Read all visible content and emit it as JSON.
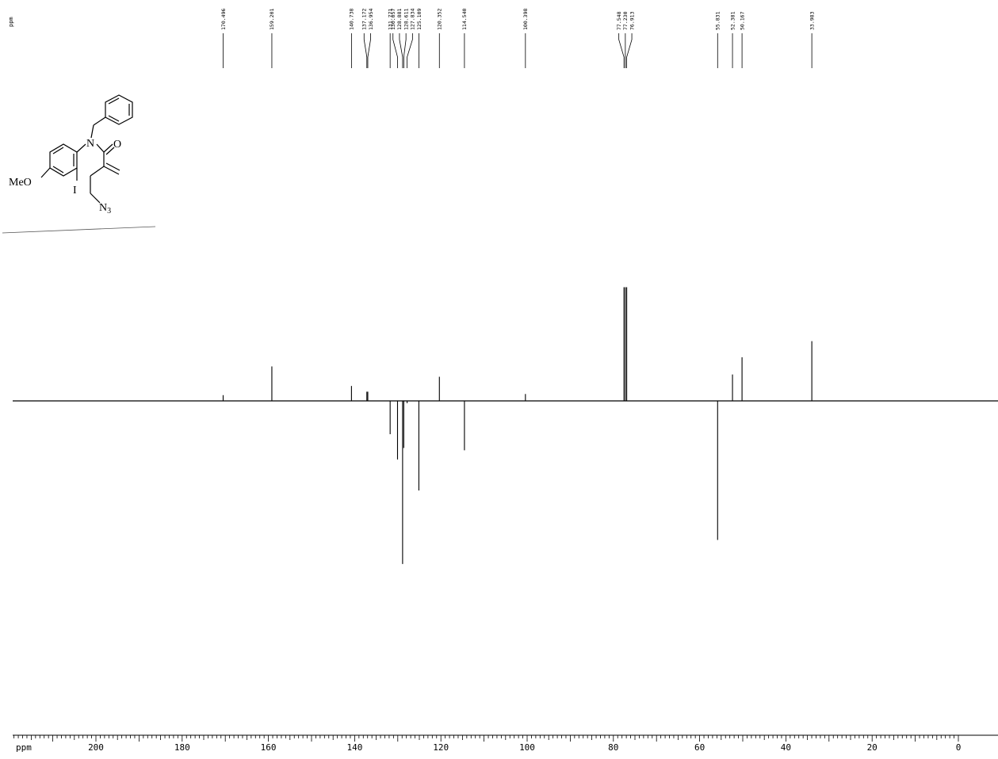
{
  "chart_data": {
    "type": "line",
    "title": "",
    "xlabel": "ppm",
    "ylabel": "",
    "corner_label": "ppm",
    "x_reversed": true,
    "xlim": [
      0,
      205
    ],
    "ticks": [
      200,
      180,
      160,
      140,
      120,
      100,
      80,
      60,
      40,
      20,
      0
    ],
    "tick_labels": [
      "200",
      "180",
      "160",
      "140",
      "120",
      "100",
      "80",
      "60",
      "40",
      "20",
      "0"
    ],
    "peak_labels": [
      "170.496",
      "159.201",
      "140.738",
      "137.172",
      "136.954",
      "131.771",
      "130.057",
      "128.881",
      "128.611",
      "127.834",
      "125.109",
      "120.352",
      "114.540",
      "100.398",
      "77.548",
      "77.230",
      "76.913",
      "55.831",
      "52.381",
      "50.167",
      "33.983"
    ],
    "peaks": [
      {
        "ppm": 170.496,
        "intensity": 0.05
      },
      {
        "ppm": 159.201,
        "intensity": 0.3
      },
      {
        "ppm": 140.738,
        "intensity": 0.13
      },
      {
        "ppm": 137.172,
        "intensity": 0.08
      },
      {
        "ppm": 136.954,
        "intensity": 0.08
      },
      {
        "ppm": 131.771,
        "intensity": -0.29
      },
      {
        "ppm": 130.057,
        "intensity": -0.51
      },
      {
        "ppm": 128.881,
        "intensity": -1.42
      },
      {
        "ppm": 128.611,
        "intensity": -0.41
      },
      {
        "ppm": 127.834,
        "intensity": -0.02
      },
      {
        "ppm": 125.109,
        "intensity": -0.78
      },
      {
        "ppm": 120.352,
        "intensity": 0.21
      },
      {
        "ppm": 114.54,
        "intensity": -0.43
      },
      {
        "ppm": 100.398,
        "intensity": 0.06
      },
      {
        "ppm": 77.548,
        "intensity": 0.99
      },
      {
        "ppm": 77.23,
        "intensity": 0.99
      },
      {
        "ppm": 76.913,
        "intensity": 0.99
      },
      {
        "ppm": 55.831,
        "intensity": -1.21
      },
      {
        "ppm": 52.381,
        "intensity": 0.23
      },
      {
        "ppm": 50.167,
        "intensity": 0.38
      },
      {
        "ppm": 33.983,
        "intensity": 0.52
      }
    ]
  },
  "molecule": {
    "label_methoxy": "MeO",
    "label_nitrogen": "N",
    "label_oxygen": "O",
    "label_iodine": "I",
    "label_azide": "N",
    "label_azide_sub": "3"
  }
}
